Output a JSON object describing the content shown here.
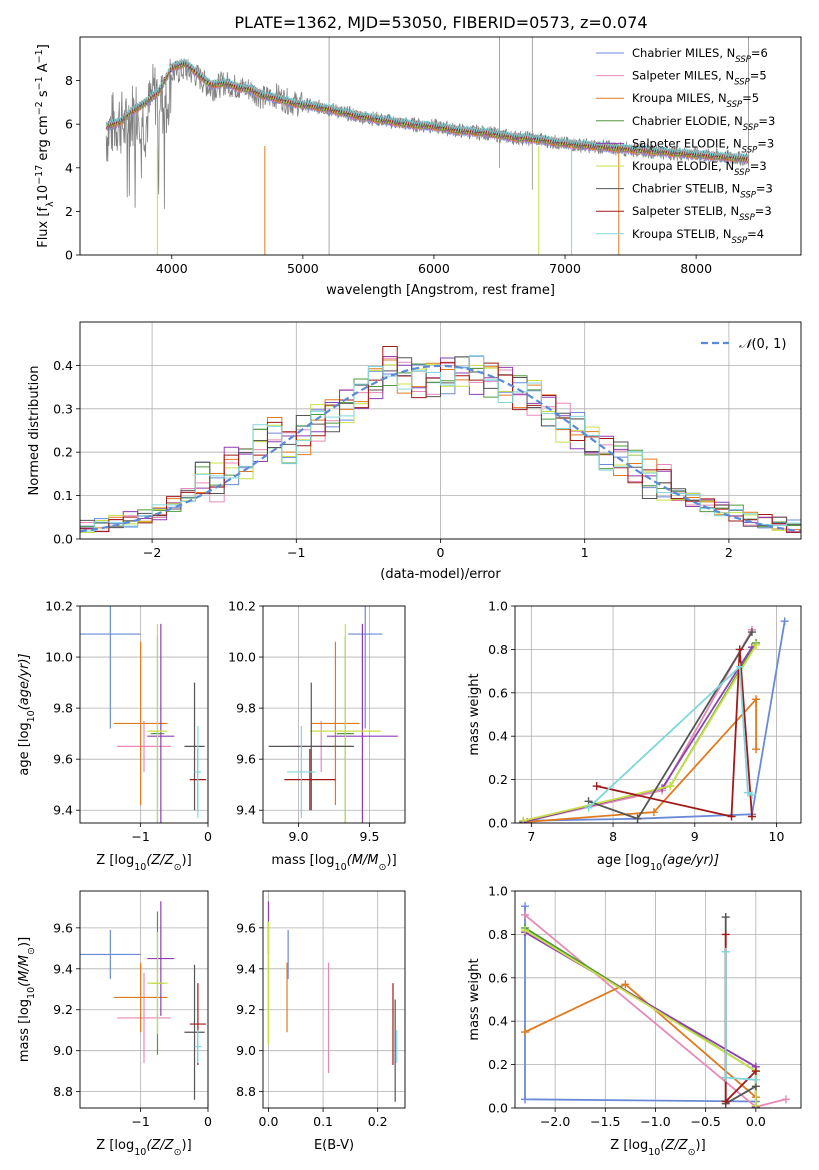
{
  "figure_title": "PLATE=1362, MJD=53050, FIBERID=0573, z=0.074",
  "colors": {
    "chabrier_miles": "#6a8ad8",
    "salpeter_miles": "#e58ab8",
    "kroupa_miles": "#e07a1f",
    "chabrier_elodie": "#4f9a3c",
    "salpeter_elodie": "#8f3fb0",
    "kroupa_elodie": "#c8e045",
    "chabrier_stelib": "#555555",
    "salpeter_stelib": "#a01a1a",
    "kroupa_stelib": "#7fd6dc",
    "spectrum": "#808080",
    "normal": "#5b8ad8"
  },
  "chart_data": [
    {
      "id": "spectrum",
      "type": "line",
      "xlabel": "wavelength [Angstrom, rest frame]",
      "ylabel_main": "Flux [f",
      "ylabel_sub": "λ",
      "ylabel_rest": "10",
      "ylabel_exp": "−17",
      "ylabel_units": " erg cm",
      "ylabel_exp2": "−2",
      "ylabel_s": " s",
      "ylabel_exp3": "−1",
      "ylabel_A": " A",
      "ylabel_exp4": "−1",
      "ylabel_close": "]",
      "xlim": [
        3300,
        8800
      ],
      "ylim": [
        0,
        10
      ],
      "xticks": [
        4000,
        5000,
        6000,
        7000,
        8000
      ],
      "yticks": [
        0,
        2,
        4,
        6,
        8
      ],
      "observed": {
        "x": [
          3500,
          3550,
          3600,
          3650,
          3700,
          3750,
          3800,
          3850,
          3900,
          3950,
          4000,
          4100,
          4200,
          4300,
          4400,
          4500,
          4600,
          4700,
          4800,
          4900,
          5000,
          5200,
          5400,
          5600,
          5800,
          6000,
          6200,
          6400,
          6600,
          6800,
          7000,
          7200,
          7400,
          7600,
          7800,
          8000,
          8200,
          8400
        ],
        "y": [
          5.5,
          6.0,
          6.2,
          5.8,
          6.5,
          6.8,
          6.0,
          7.2,
          7.6,
          6.5,
          8.3,
          8.5,
          8.2,
          7.6,
          7.9,
          7.7,
          7.6,
          7.2,
          7.3,
          7.0,
          6.9,
          6.7,
          6.4,
          6.2,
          6.0,
          5.9,
          5.7,
          5.6,
          5.4,
          5.3,
          5.1,
          5.0,
          4.9,
          4.8,
          4.7,
          4.6,
          4.5,
          4.4
        ]
      },
      "model": {
        "x": [
          3500,
          3600,
          3700,
          3800,
          3900,
          4000,
          4100,
          4200,
          4300,
          4400,
          4500,
          4600,
          4700,
          4800,
          4900,
          5000,
          5200,
          5400,
          5600,
          5800,
          6000,
          6200,
          6400,
          6600,
          6800,
          7000,
          7200,
          7400,
          7600,
          7800,
          8000,
          8200,
          8400
        ],
        "y": [
          5.9,
          6.1,
          6.6,
          7.0,
          7.5,
          8.6,
          8.8,
          8.3,
          7.8,
          7.9,
          7.7,
          7.6,
          7.3,
          7.2,
          7.0,
          6.9,
          6.7,
          6.4,
          6.2,
          6.0,
          5.9,
          5.7,
          5.6,
          5.4,
          5.3,
          5.1,
          5.0,
          4.9,
          4.8,
          4.7,
          4.6,
          4.5,
          4.4
        ]
      },
      "legend": [
        {
          "label": "Chabrier MILES, N",
          "sub": "SSP",
          "value": "=6",
          "color": "#6a8ad8"
        },
        {
          "label": "Salpeter MILES, N",
          "sub": "SSP",
          "value": "=5",
          "color": "#e58ab8"
        },
        {
          "label": "Kroupa MILES, N",
          "sub": "SSP",
          "value": "=5",
          "color": "#e07a1f"
        },
        {
          "label": "Chabrier ELODIE, N",
          "sub": "SSP",
          "value": "=3",
          "color": "#4f9a3c"
        },
        {
          "label": "Salpeter ELODIE, N",
          "sub": "SSP",
          "value": "=3",
          "color": "#8f3fb0"
        },
        {
          "label": "Kroupa ELODIE, N",
          "sub": "SSP",
          "value": "=3",
          "color": "#c8e045"
        },
        {
          "label": "Chabrier STELIB, N",
          "sub": "SSP",
          "value": "=3",
          "color": "#555555"
        },
        {
          "label": "Salpeter STELIB, N",
          "sub": "SSP",
          "value": "=3",
          "color": "#a01a1a"
        },
        {
          "label": "Kroupa STELIB, N",
          "sub": "SSP",
          "value": "=4",
          "color": "#7fd6dc"
        }
      ],
      "legend_placement": "top-right",
      "grid": false
    },
    {
      "id": "residuals",
      "type": "line",
      "xlabel": "(data-model)/error",
      "ylabel": "Normed distribution",
      "xlim": [
        -2.5,
        2.5
      ],
      "ylim": [
        0,
        0.5
      ],
      "xticks": [
        -2,
        -1,
        0,
        1,
        2
      ],
      "yticks": [
        0.0,
        0.1,
        0.2,
        0.3,
        0.4
      ],
      "grid": true,
      "legend_placement": "top-right",
      "legend_label_prefix": "𝒩",
      "legend_label_args": "(0, 1)",
      "histogram_bins": [
        -2.5,
        -2.4,
        -2.3,
        -2.2,
        -2.1,
        -2.0,
        -1.9,
        -1.8,
        -1.7,
        -1.6,
        -1.5,
        -1.4,
        -1.3,
        -1.2,
        -1.1,
        -1.0,
        -0.9,
        -0.8,
        -0.7,
        -0.6,
        -0.5,
        -0.4,
        -0.3,
        -0.2,
        -0.1,
        0.0,
        0.1,
        0.2,
        0.3,
        0.4,
        0.5,
        0.6,
        0.7,
        0.8,
        0.9,
        1.0,
        1.1,
        1.2,
        1.3,
        1.4,
        1.5,
        1.6,
        1.7,
        1.8,
        1.9,
        2.0,
        2.1,
        2.2,
        2.3,
        2.4,
        2.5
      ],
      "histogram_base": [
        0.025,
        0.03,
        0.04,
        0.045,
        0.05,
        0.06,
        0.08,
        0.1,
        0.14,
        0.13,
        0.17,
        0.18,
        0.22,
        0.24,
        0.21,
        0.24,
        0.27,
        0.29,
        0.31,
        0.33,
        0.36,
        0.4,
        0.38,
        0.37,
        0.37,
        0.38,
        0.39,
        0.38,
        0.37,
        0.36,
        0.34,
        0.33,
        0.3,
        0.27,
        0.25,
        0.22,
        0.2,
        0.19,
        0.17,
        0.14,
        0.13,
        0.1,
        0.09,
        0.08,
        0.07,
        0.06,
        0.045,
        0.04,
        0.035,
        0.025
      ]
    },
    {
      "id": "age-vs-Z",
      "type": "scatter",
      "xlabel": "Z [log",
      "xlabel_sub": "10",
      "xlabel_rest": "(Z/Z",
      "xlabel_sun": "⊙",
      "xlabel_close": ")]",
      "ylabel": "age  [log",
      "ylabel_sub": "10",
      "ylabel_rest": "(age/yr)]",
      "xlim": [
        -1.9,
        0.0
      ],
      "ylim": [
        9.35,
        10.2
      ],
      "xticks": [
        -1,
        0
      ],
      "yticks": [
        9.4,
        9.6,
        9.8,
        10.0,
        10.2
      ],
      "grid": true,
      "points": [
        {
          "x": -1.45,
          "xerr": 0.45,
          "y": 10.09,
          "yerr": 0.37,
          "color": "#6a8ad8"
        },
        {
          "x": -0.95,
          "xerr": 0.4,
          "y": 9.65,
          "yerr": 0.1,
          "color": "#e58ab8"
        },
        {
          "x": -1.0,
          "xerr": 0.4,
          "y": 9.74,
          "yerr": 0.32,
          "color": "#e07a1f"
        },
        {
          "x": -0.75,
          "xerr": 0.1,
          "y": 9.7,
          "yerr": 0.38,
          "color": "#4f9a3c"
        },
        {
          "x": -0.7,
          "xerr": 0.2,
          "y": 9.69,
          "yerr": 0.44,
          "color": "#8f3fb0"
        },
        {
          "x": -0.75,
          "xerr": 0.15,
          "y": 9.71,
          "yerr": 0.42,
          "color": "#c8e045"
        },
        {
          "x": -0.2,
          "xerr": 0.15,
          "y": 9.65,
          "yerr": 0.25,
          "color": "#555555"
        },
        {
          "x": -0.15,
          "xerr": 0.12,
          "y": 9.52,
          "yerr": 0.12,
          "color": "#a01a1a"
        },
        {
          "x": -0.15,
          "xerr": 0.05,
          "y": 9.55,
          "yerr": 0.18,
          "color": "#7fd6dc"
        }
      ]
    },
    {
      "id": "age-vs-mass",
      "type": "scatter",
      "xlabel": "mass [log",
      "xlabel_sub": "10",
      "xlabel_rest": "(M/M",
      "xlabel_sun": "⊙",
      "xlabel_close": ")]",
      "xlim": [
        8.75,
        9.75
      ],
      "ylim": [
        9.35,
        10.2
      ],
      "xticks": [
        9.0,
        9.5
      ],
      "yticks": [
        9.4,
        9.6,
        9.8,
        10.0,
        10.2
      ],
      "grid": true,
      "points": [
        {
          "x": 9.47,
          "xerr": 0.12,
          "y": 10.09,
          "yerr": 0.37,
          "color": "#6a8ad8"
        },
        {
          "x": 9.16,
          "xerr": 0.22,
          "y": 9.65,
          "yerr": 0.1,
          "color": "#e58ab8"
        },
        {
          "x": 9.26,
          "xerr": 0.17,
          "y": 9.74,
          "yerr": 0.32,
          "color": "#e07a1f"
        },
        {
          "x": 9.33,
          "xerr": 0.06,
          "y": 9.7,
          "yerr": 0.38,
          "color": "#4f9a3c"
        },
        {
          "x": 9.45,
          "xerr": 0.25,
          "y": 9.69,
          "yerr": 0.44,
          "color": "#8f3fb0"
        },
        {
          "x": 9.33,
          "xerr": 0.25,
          "y": 9.71,
          "yerr": 0.42,
          "color": "#c8e045"
        },
        {
          "x": 9.09,
          "xerr": 0.3,
          "y": 9.65,
          "yerr": 0.25,
          "color": "#555555"
        },
        {
          "x": 9.08,
          "xerr": 0.18,
          "y": 9.52,
          "yerr": 0.12,
          "color": "#a01a1a"
        },
        {
          "x": 9.02,
          "xerr": 0.1,
          "y": 9.55,
          "yerr": 0.18,
          "color": "#7fd6dc"
        }
      ]
    },
    {
      "id": "massweight-vs-age",
      "type": "line",
      "xlabel": "age  [log",
      "xlabel_sub": "10",
      "xlabel_rest": "(age/yr)]",
      "ylabel": "mass weight",
      "xlim": [
        6.8,
        10.3
      ],
      "ylim": [
        0,
        1
      ],
      "xticks": [
        7,
        8,
        9,
        10
      ],
      "yticks": [
        0.0,
        0.2,
        0.4,
        0.6,
        0.8,
        1.0
      ],
      "grid": true,
      "series": [
        {
          "color": "#6a8ad8",
          "x": [
            6.9,
            8.3,
            9.7,
            10.1
          ],
          "y": [
            0.01,
            0.02,
            0.04,
            0.93
          ]
        },
        {
          "color": "#e58ab8",
          "x": [
            6.9,
            8.6,
            9.7
          ],
          "y": [
            0.005,
            0.15,
            0.89
          ]
        },
        {
          "color": "#e07a1f",
          "x": [
            6.95,
            8.5,
            9.75,
            9.75
          ],
          "y": [
            0.005,
            0.05,
            0.57,
            0.34
          ]
        },
        {
          "color": "#4f9a3c",
          "x": [
            6.9,
            8.7,
            9.75
          ],
          "y": [
            0.005,
            0.17,
            0.83
          ]
        },
        {
          "color": "#8f3fb0",
          "x": [
            6.9,
            8.6,
            9.7
          ],
          "y": [
            0.005,
            0.16,
            0.81
          ]
        },
        {
          "color": "#c8e045",
          "x": [
            6.9,
            8.7,
            9.75
          ],
          "y": [
            0.01,
            0.17,
            0.82
          ]
        },
        {
          "color": "#555555",
          "x": [
            7.7,
            8.3,
            9.7
          ],
          "y": [
            0.1,
            0.02,
            0.88
          ]
        },
        {
          "color": "#a01a1a",
          "x": [
            7.8,
            9.45,
            9.55,
            9.7
          ],
          "y": [
            0.17,
            0.03,
            0.8,
            0.03
          ]
        },
        {
          "color": "#7fd6dc",
          "x": [
            7.7,
            9.55,
            9.65,
            9.7
          ],
          "y": [
            0.07,
            0.72,
            0.14,
            0.13
          ]
        }
      ]
    },
    {
      "id": "mass-vs-Z",
      "type": "scatter",
      "xlabel": "Z [log",
      "xlabel_sub": "10",
      "xlabel_rest": "(Z/Z",
      "xlabel_sun": "⊙",
      "xlabel_close": ")]",
      "ylabel": "mass [log",
      "ylabel_sub": "10",
      "ylabel_rest": "(M/M",
      "ylabel_sun": "⊙",
      "ylabel_close": ")]",
      "xlim": [
        -1.9,
        0.0
      ],
      "ylim": [
        8.72,
        9.78
      ],
      "xticks": [
        -1,
        0
      ],
      "yticks": [
        8.8,
        9.0,
        9.2,
        9.4,
        9.6
      ],
      "grid": true,
      "points": [
        {
          "x": -1.45,
          "xerr": 0.45,
          "y": 9.47,
          "yerr": 0.12,
          "color": "#6a8ad8"
        },
        {
          "x": -0.95,
          "xerr": 0.4,
          "y": 9.16,
          "yerr": 0.22,
          "color": "#e58ab8"
        },
        {
          "x": -1.0,
          "xerr": 0.4,
          "y": 9.26,
          "yerr": 0.17,
          "color": "#e07a1f"
        },
        {
          "x": -0.75,
          "xerr": 0.1,
          "y": 9.33,
          "yerr": 0.35,
          "color": "#4f9a3c"
        },
        {
          "x": -0.7,
          "xerr": 0.2,
          "y": 9.45,
          "yerr": 0.28,
          "color": "#8f3fb0"
        },
        {
          "x": -0.75,
          "xerr": 0.15,
          "y": 9.33,
          "yerr": 0.25,
          "color": "#c8e045"
        },
        {
          "x": -0.2,
          "xerr": 0.15,
          "y": 9.09,
          "yerr": 0.33,
          "color": "#555555"
        },
        {
          "x": -0.15,
          "xerr": 0.12,
          "y": 9.13,
          "yerr": 0.2,
          "color": "#a01a1a"
        },
        {
          "x": -0.15,
          "xerr": 0.05,
          "y": 9.02,
          "yerr": 0.08,
          "color": "#7fd6dc"
        }
      ]
    },
    {
      "id": "mass-vs-EBV",
      "type": "scatter",
      "xlabel": "E(B-V)",
      "xlim": [
        -0.01,
        0.25
      ],
      "ylim": [
        8.72,
        9.78
      ],
      "xticks": [
        0.0,
        0.1,
        0.2
      ],
      "yticks": [
        8.8,
        9.0,
        9.2,
        9.4,
        9.6
      ],
      "grid": true,
      "points": [
        {
          "x": 0.036,
          "y": 9.47,
          "yerr": 0.12,
          "color": "#6a8ad8"
        },
        {
          "x": 0.11,
          "y": 9.16,
          "yerr": 0.27,
          "color": "#e58ab8"
        },
        {
          "x": 0.034,
          "y": 9.26,
          "yerr": 0.17,
          "color": "#e07a1f"
        },
        {
          "x": 0.0,
          "y": 9.33,
          "yerr": 0.3,
          "color": "#4f9a3c"
        },
        {
          "x": 0.0,
          "y": 9.6,
          "yerr": 0.13,
          "color": "#8f3fb0"
        },
        {
          "x": 0.0,
          "y": 9.33,
          "yerr": 0.3,
          "color": "#c8e045"
        },
        {
          "x": 0.232,
          "y": 9.0,
          "yerr": 0.25,
          "color": "#555555"
        },
        {
          "x": 0.228,
          "y": 9.13,
          "yerr": 0.2,
          "color": "#a01a1a"
        },
        {
          "x": 0.235,
          "y": 9.02,
          "yerr": 0.08,
          "color": "#7fd6dc"
        }
      ]
    },
    {
      "id": "massweight-vs-Z",
      "type": "line",
      "xlabel": "Z [log",
      "xlabel_sub": "10",
      "xlabel_rest": "(Z/Z",
      "xlabel_sun": "⊙",
      "xlabel_close": ")]",
      "ylabel": "mass weight",
      "xlim": [
        -2.4,
        0.45
      ],
      "ylim": [
        0,
        1
      ],
      "xticks": [
        -2.0,
        -1.5,
        -1.0,
        -0.5,
        0.0
      ],
      "yticks": [
        0.0,
        0.2,
        0.4,
        0.6,
        0.8,
        1.0
      ],
      "grid": true,
      "series": [
        {
          "color": "#6a8ad8",
          "x": [
            -2.3,
            -2.3,
            0.0
          ],
          "y": [
            0.93,
            0.04,
            0.03
          ]
        },
        {
          "color": "#e58ab8",
          "x": [
            -2.3,
            0.0,
            0.3
          ],
          "y": [
            0.89,
            0.005,
            0.04
          ]
        },
        {
          "color": "#e07a1f",
          "x": [
            -2.3,
            -1.3,
            0.0
          ],
          "y": [
            0.35,
            0.57,
            0.05
          ]
        },
        {
          "color": "#4f9a3c",
          "x": [
            -2.3,
            0.0,
            0.0
          ],
          "y": [
            0.83,
            0.17,
            0.005
          ]
        },
        {
          "color": "#8f3fb0",
          "x": [
            -2.3,
            0.0,
            0.0
          ],
          "y": [
            0.81,
            0.19,
            0.005
          ]
        },
        {
          "color": "#c8e045",
          "x": [
            -2.3,
            0.0,
            0.0
          ],
          "y": [
            0.82,
            0.17,
            0.01
          ]
        },
        {
          "color": "#555555",
          "x": [
            -0.3,
            -0.3,
            0.0
          ],
          "y": [
            0.88,
            0.02,
            0.1
          ]
        },
        {
          "color": "#a01a1a",
          "x": [
            -0.3,
            -0.3,
            0.0
          ],
          "y": [
            0.8,
            0.03,
            0.17
          ]
        },
        {
          "color": "#7fd6dc",
          "x": [
            -0.3,
            -0.3,
            0.0
          ],
          "y": [
            0.72,
            0.14,
            0.13
          ]
        }
      ]
    }
  ]
}
